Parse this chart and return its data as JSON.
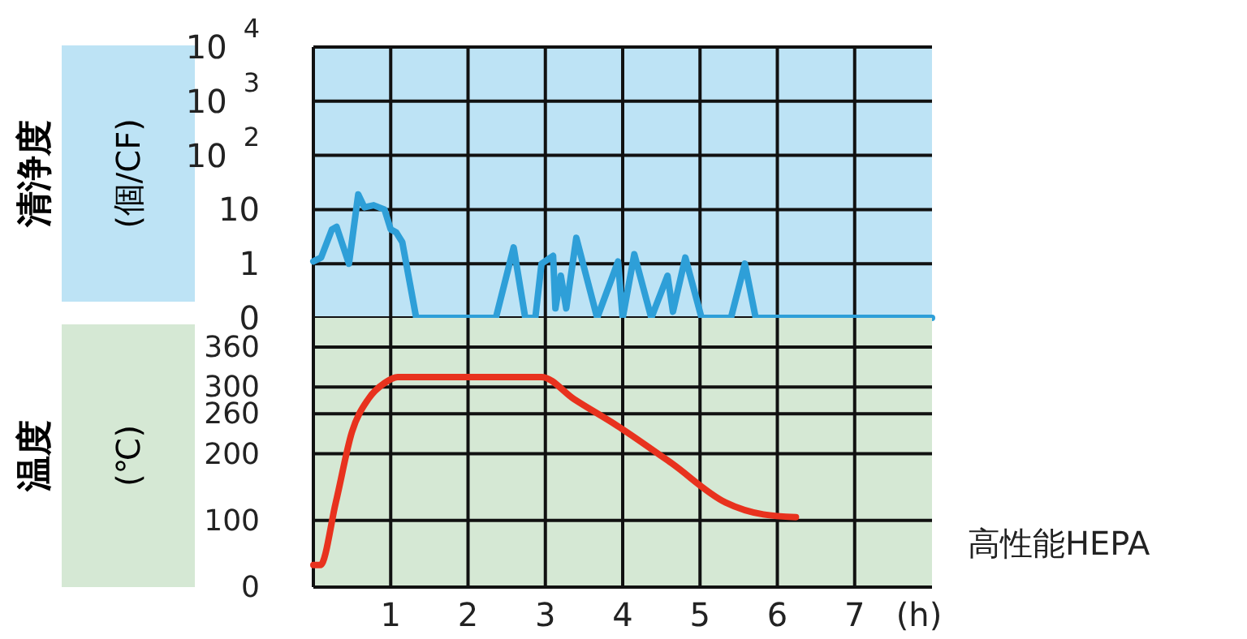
{
  "chart_data": [
    {
      "type": "line",
      "ylabel": "清浄度\n(個/CF)",
      "xlim": [
        0,
        8
      ],
      "xticks": [
        1,
        2,
        3,
        4,
        5,
        6,
        7
      ],
      "ylim": [
        0.1,
        10000
      ],
      "yticks": [
        {
          "value": 0.1,
          "label": "0"
        },
        1,
        10,
        {
          "value": 100,
          "label": "10$^{2}$"
        },
        {
          "value": 1000,
          "label": "10$^{3}$"
        },
        {
          "value": 10000,
          "label": "10$^{4}$"
        }
      ],
      "log": true,
      "grid": true,
      "tick_labels": "y",
      "series": [
        {
          "color": "#2e9fd8",
          "x": [
            0,
            0.1,
            0.24,
            0.3,
            0.46,
            0.58,
            0.66,
            0.78,
            0.92,
            1.0,
            1.07,
            1.15,
            1.33,
            2.36,
            2.59,
            2.74,
            2.87,
            2.95,
            3.1,
            3.13,
            3.2,
            3.27,
            3.4,
            3.67,
            3.94,
            4.0,
            4.15,
            4.37,
            4.58,
            4.65,
            4.81,
            5.02,
            5.4,
            5.58,
            5.72,
            8
          ],
          "values": [
            1.1,
            1.3,
            4.3,
            4.8,
            1,
            19,
            11,
            12,
            10,
            4.3,
            3.8,
            2.5,
            0.1,
            0.1,
            2,
            0.1,
            0.1,
            1,
            1.4,
            0.15,
            0.6,
            0.15,
            3,
            0.1,
            1.1,
            0.1,
            1.5,
            0.1,
            0.6,
            0.13,
            1.3,
            0.1,
            0.1,
            1,
            0.1,
            0.1
          ]
        }
      ]
    },
    {
      "type": "line",
      "ylabel": "温度\n(℃)",
      "xlabel": "(h)",
      "xlim": [
        0,
        8
      ],
      "xticks": [
        1,
        2,
        3,
        4,
        5,
        6,
        7
      ],
      "ylim": [
        0,
        360
      ],
      "yticks": [
        0,
        100,
        200,
        260,
        300,
        360
      ],
      "grid": true,
      "annotations": [
        "高性能HEPA"
      ],
      "series": [
        {
          "color": "#e8321e",
          "x": [
            0,
            0.09,
            0.29,
            0.5,
            0.71,
            0.92,
            1.09,
            2.95,
            3.37,
            3.93,
            4.63,
            5.33,
            5.82,
            6.24
          ],
          "values": [
            33,
            33,
            127,
            233,
            282,
            306,
            315,
            315,
            282,
            242,
            186,
            127,
            109,
            105
          ]
        }
      ]
    }
  ]
}
